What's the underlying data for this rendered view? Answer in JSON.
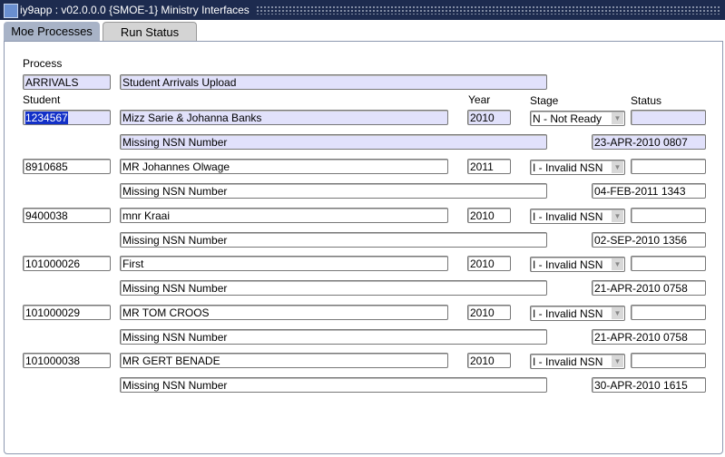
{
  "window": {
    "title": "iy9app : v02.0.0.0 {SMOE-1} Ministry Interfaces"
  },
  "tabs": [
    {
      "label": "Moe Processes"
    },
    {
      "label": "Run Status"
    }
  ],
  "labels": {
    "process": "Process",
    "student": "Student",
    "year": "Year",
    "stage": "Stage",
    "status": "Status"
  },
  "process": {
    "code": "ARRIVALS",
    "description": "Student Arrivals Upload"
  },
  "records": [
    {
      "student": "1234567",
      "name": "Mizz Sarie & Johanna Banks",
      "year": "2010",
      "stage": "N - Not Ready",
      "status": "",
      "message": "Missing NSN Number",
      "date": "23-APR-2010 0807"
    },
    {
      "student": "8910685",
      "name": "MR Johannes Olwage",
      "year": "2011",
      "stage": "I - Invalid NSN",
      "status": "",
      "message": "Missing NSN Number",
      "date": "04-FEB-2011 1343"
    },
    {
      "student": "9400038",
      "name": "mnr  Kraai",
      "year": "2010",
      "stage": "I - Invalid NSN",
      "status": "",
      "message": "Missing NSN Number",
      "date": "02-SEP-2010 1356"
    },
    {
      "student": "101000026",
      "name": "  First",
      "year": "2010",
      "stage": "I - Invalid NSN",
      "status": "",
      "message": "Missing NSN Number",
      "date": "21-APR-2010 0758"
    },
    {
      "student": "101000029",
      "name": "MR TOM CROOS",
      "year": "2010",
      "stage": "I - Invalid NSN",
      "status": "",
      "message": "Missing NSN Number",
      "date": "21-APR-2010 0758"
    },
    {
      "student": "101000038",
      "name": "MR GERT BENADE",
      "year": "2010",
      "stage": "I - Invalid NSN",
      "status": "",
      "message": "Missing NSN Number",
      "date": "30-APR-2010 1615"
    }
  ],
  "colors": {
    "titlebar": "#1d2b4f",
    "active_record": "#e1e1fb",
    "selection": "#1230c8"
  }
}
